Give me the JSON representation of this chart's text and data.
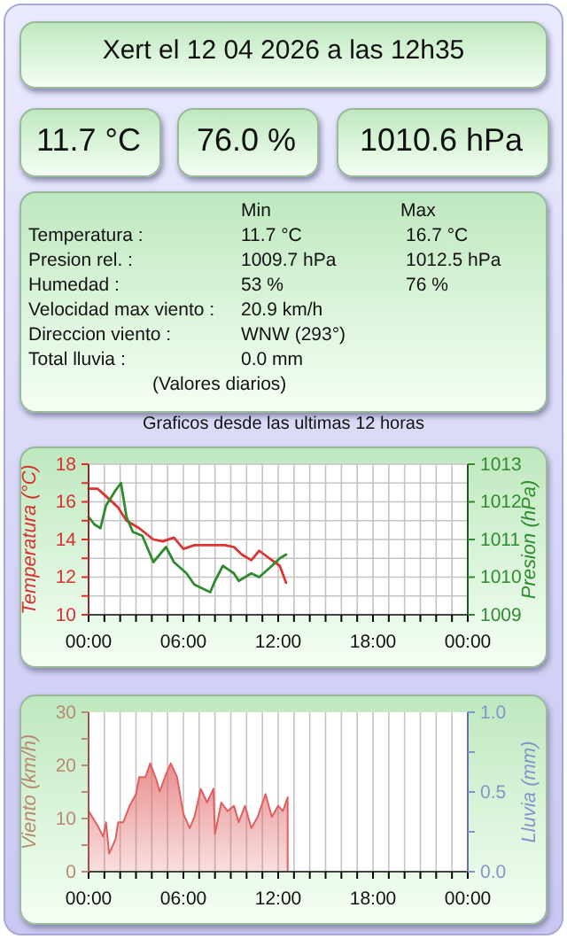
{
  "chart_data": [
    {
      "type": "other",
      "title": "Xert el 12 04 2026 a las 12h35",
      "annotations": [
        "11.7 °C",
        "76.0 %",
        "1010.6 hPa",
        "Min",
        "Max",
        "Temperatura :",
        "11.7 °C",
        "16.7 °C",
        "Presion rel. :",
        "1009.7 hPa",
        "1012.5 hPa",
        "Humedad :",
        "53 %",
        "76 %",
        "Velocidad max viento :",
        "20.9 km/h",
        "Direccion viento :",
        "WNW (293°)",
        "Total lluvia :",
        "0.0 mm",
        "(Valores diarios)"
      ]
    },
    {
      "type": "line",
      "title": "Graficos desde las ultimas 12 horas",
      "ylabel": "Temperatura (°C)",
      "y2label": "Presion (hPa)",
      "xlim": [
        0,
        24
      ],
      "xticks": [
        {
          "value": 0,
          "label": "00:00"
        },
        {
          "value": 1,
          "label": null
        },
        {
          "value": 2,
          "label": null
        },
        {
          "value": 3,
          "label": null
        },
        {
          "value": 4,
          "label": null
        },
        {
          "value": 5,
          "label": null
        },
        {
          "value": 6,
          "label": "06:00"
        },
        {
          "value": 7,
          "label": null
        },
        {
          "value": 8,
          "label": null
        },
        {
          "value": 9,
          "label": null
        },
        {
          "value": 10,
          "label": null
        },
        {
          "value": 11,
          "label": null
        },
        {
          "value": 12,
          "label": "12:00"
        },
        {
          "value": 13,
          "label": null
        },
        {
          "value": 14,
          "label": null
        },
        {
          "value": 15,
          "label": null
        },
        {
          "value": 16,
          "label": null
        },
        {
          "value": 17,
          "label": null
        },
        {
          "value": 18,
          "label": "18:00"
        },
        {
          "value": 19,
          "label": null
        },
        {
          "value": 20,
          "label": null
        },
        {
          "value": 21,
          "label": null
        },
        {
          "value": 22,
          "label": null
        },
        {
          "value": 23,
          "label": null
        },
        {
          "value": 24,
          "label": "00:00"
        }
      ],
      "ylim": [
        10,
        18
      ],
      "yticks": [
        10,
        {
          "value": 11,
          "label": null
        },
        12,
        {
          "value": 13,
          "label": null
        },
        14,
        {
          "value": 15,
          "label": null
        },
        16,
        {
          "value": 17,
          "label": null
        },
        18
      ],
      "y2lim": [
        1009,
        1013
      ],
      "y2ticks": [
        1009,
        1010,
        1011,
        1012,
        1013
      ],
      "grid": true,
      "series": [
        {
          "color": "#dd3333",
          "x": [
            0,
            0.56,
            1.1,
            1.87,
            2.4,
            3.2,
            4.1,
            4.7,
            5.4,
            6.0,
            6.7,
            7.5,
            8.6,
            9.2,
            9.7,
            10.3,
            10.8,
            11.6,
            12.1,
            12.5
          ],
          "values": [
            16.7,
            16.7,
            16.3,
            15.7,
            15.0,
            14.6,
            14.0,
            13.9,
            14.1,
            13.5,
            13.7,
            13.7,
            13.7,
            13.6,
            13.2,
            12.9,
            13.4,
            12.9,
            12.6,
            11.7
          ]
        },
        {
          "color": "#2e8b2e",
          "axis": "y2",
          "x": [
            0,
            0.37,
            0.75,
            1.1,
            1.7,
            2.05,
            2.4,
            2.8,
            3.4,
            4.1,
            4.9,
            5.4,
            6.2,
            6.7,
            7.7,
            8.0,
            8.5,
            9.2,
            9.5,
            10.3,
            10.8,
            11.6,
            12.1,
            12.5
          ],
          "values": [
            1011.6,
            1011.4,
            1011.3,
            1011.9,
            1012.3,
            1012.5,
            1011.6,
            1011.2,
            1011.1,
            1010.4,
            1010.8,
            1010.4,
            1010.1,
            1009.8,
            1009.6,
            1009.9,
            1010.3,
            1010.1,
            1009.9,
            1010.1,
            1010.0,
            1010.3,
            1010.5,
            1010.6
          ]
        }
      ]
    },
    {
      "type": "area",
      "ylabel": "Viento (km/h)",
      "y2label": "Lluvia (mm)",
      "xlim": [
        0,
        24
      ],
      "xticks": [
        {
          "value": 0,
          "label": "00:00"
        },
        {
          "value": 1,
          "label": null
        },
        {
          "value": 2,
          "label": null
        },
        {
          "value": 3,
          "label": null
        },
        {
          "value": 4,
          "label": null
        },
        {
          "value": 5,
          "label": null
        },
        {
          "value": 6,
          "label": "06:00"
        },
        {
          "value": 7,
          "label": null
        },
        {
          "value": 8,
          "label": null
        },
        {
          "value": 9,
          "label": null
        },
        {
          "value": 10,
          "label": null
        },
        {
          "value": 11,
          "label": null
        },
        {
          "value": 12,
          "label": "12:00"
        },
        {
          "value": 13,
          "label": null
        },
        {
          "value": 14,
          "label": null
        },
        {
          "value": 15,
          "label": null
        },
        {
          "value": 16,
          "label": null
        },
        {
          "value": 17,
          "label": null
        },
        {
          "value": 18,
          "label": "18:00"
        },
        {
          "value": 19,
          "label": null
        },
        {
          "value": 20,
          "label": null
        },
        {
          "value": 21,
          "label": null
        },
        {
          "value": 22,
          "label": null
        },
        {
          "value": 23,
          "label": null
        },
        {
          "value": 24,
          "label": "00:00"
        }
      ],
      "ylim": [
        0,
        30
      ],
      "yticks": [
        0,
        {
          "value": 5,
          "label": null
        },
        10,
        {
          "value": 15,
          "label": null
        },
        20,
        {
          "value": 25,
          "label": null
        },
        30
      ],
      "y2lim": [
        0,
        1
      ],
      "y2ticks": [
        {
          "value": 0,
          "label": "0.0"
        },
        {
          "value": 0.25,
          "label": null
        },
        {
          "value": 0.5,
          "label": "0.5"
        },
        {
          "value": 0.75,
          "label": null
        },
        {
          "value": 1,
          "label": "1.0"
        }
      ],
      "grid": "x",
      "series": [
        {
          "color": "#e06060",
          "x": [
            0,
            0.56,
            0.93,
            1.1,
            1.3,
            1.7,
            1.87,
            2.2,
            2.6,
            3.0,
            3.2,
            3.6,
            3.9,
            4.3,
            4.5,
            4.9,
            5.2,
            5.6,
            6.0,
            6.4,
            6.7,
            7.1,
            7.5,
            7.9,
            8.0,
            8.4,
            8.8,
            9.2,
            9.5,
            9.9,
            10.3,
            10.7,
            11.2,
            11.6,
            12.0,
            12.3,
            12.6
          ],
          "values": [
            11.4,
            8.7,
            6.6,
            9.3,
            3.4,
            6.1,
            9.3,
            9.3,
            12.4,
            14.6,
            17.8,
            17.8,
            20.4,
            17.2,
            15.1,
            18.3,
            20.4,
            17.8,
            10.9,
            8.2,
            10.3,
            15.6,
            13.0,
            15.6,
            7.1,
            13.0,
            11.4,
            12.4,
            9.3,
            12.4,
            8.2,
            10.3,
            14.6,
            10.3,
            12.4,
            11.4,
            14.0
          ]
        }
      ]
    }
  ]
}
